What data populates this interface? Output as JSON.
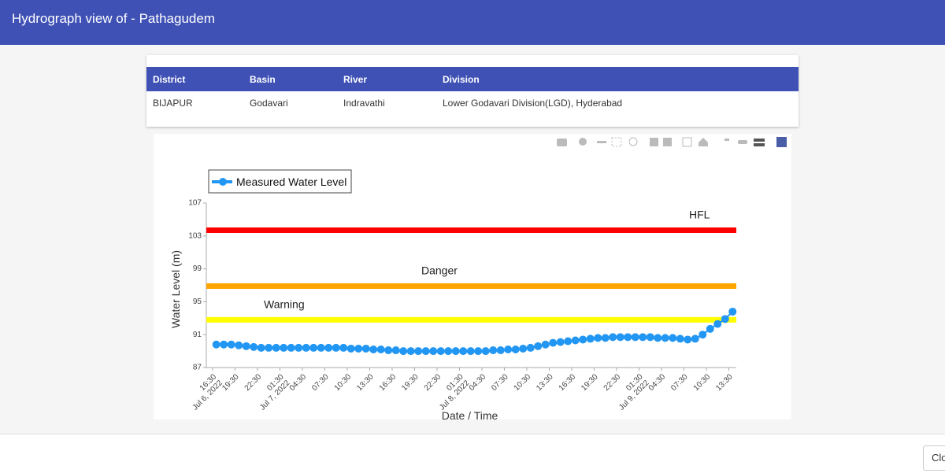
{
  "header": {
    "title": "Hydrograph view of - Pathagudem"
  },
  "table": {
    "columns": [
      "District",
      "Basin",
      "River",
      "Division"
    ],
    "rows": [
      [
        "BIJAPUR",
        "Godavari",
        "Indravathi",
        "Lower Godavari Division(LGD), Hyderabad"
      ]
    ]
  },
  "chart_data": {
    "type": "line",
    "xlabel": "Date / Time",
    "ylabel": "Water Level (m)",
    "ylim": [
      87,
      107
    ],
    "yticks": [
      87,
      91,
      95,
      99,
      103,
      107
    ],
    "xlim": [
      "2022-07-06 15:40",
      "2022-07-09 14:30"
    ],
    "xticks": [
      {
        "value": "2022-07-06 16:30",
        "label": "16:30\nJul 6, 2022"
      },
      {
        "value": "2022-07-06 19:30",
        "label": "19:30"
      },
      {
        "value": "2022-07-06 22:30",
        "label": "22:30"
      },
      {
        "value": "2022-07-07 01:30",
        "label": "01:30\nJul 7, 2022"
      },
      {
        "value": "2022-07-07 04:30",
        "label": "04:30"
      },
      {
        "value": "2022-07-07 07:30",
        "label": "07:30"
      },
      {
        "value": "2022-07-07 10:30",
        "label": "10:30"
      },
      {
        "value": "2022-07-07 13:30",
        "label": "13:30"
      },
      {
        "value": "2022-07-07 16:30",
        "label": "16:30"
      },
      {
        "value": "2022-07-07 19:30",
        "label": "19:30"
      },
      {
        "value": "2022-07-07 22:30",
        "label": "22:30"
      },
      {
        "value": "2022-07-08 01:30",
        "label": "01:30\nJul 8, 2022"
      },
      {
        "value": "2022-07-08 04:30",
        "label": "04:30"
      },
      {
        "value": "2022-07-08 07:30",
        "label": "07:30"
      },
      {
        "value": "2022-07-08 10:30",
        "label": "10:30"
      },
      {
        "value": "2022-07-08 13:30",
        "label": "13:30"
      },
      {
        "value": "2022-07-08 16:30",
        "label": "16:30"
      },
      {
        "value": "2022-07-08 19:30",
        "label": "19:30"
      },
      {
        "value": "2022-07-08 22:30",
        "label": "22:30"
      },
      {
        "value": "2022-07-09 01:30",
        "label": "01:30\nJul 9, 2022"
      },
      {
        "value": "2022-07-09 04:30",
        "label": "04:30"
      },
      {
        "value": "2022-07-09 07:30",
        "label": "07:30"
      },
      {
        "value": "2022-07-09 10:30",
        "label": "10:30"
      },
      {
        "value": "2022-07-09 13:30",
        "label": "13:30"
      }
    ],
    "x": [
      "2022-07-06 17:00",
      "2022-07-06 18:00",
      "2022-07-06 19:00",
      "2022-07-06 20:00",
      "2022-07-06 21:00",
      "2022-07-06 22:00",
      "2022-07-06 23:00",
      "2022-07-07 00:00",
      "2022-07-07 01:00",
      "2022-07-07 02:00",
      "2022-07-07 03:00",
      "2022-07-07 04:00",
      "2022-07-07 05:00",
      "2022-07-07 06:00",
      "2022-07-07 07:00",
      "2022-07-07 08:00",
      "2022-07-07 09:00",
      "2022-07-07 10:00",
      "2022-07-07 11:00",
      "2022-07-07 12:00",
      "2022-07-07 13:00",
      "2022-07-07 14:00",
      "2022-07-07 15:00",
      "2022-07-07 16:00",
      "2022-07-07 17:00",
      "2022-07-07 18:00",
      "2022-07-07 19:00",
      "2022-07-07 20:00",
      "2022-07-07 21:00",
      "2022-07-07 22:00",
      "2022-07-07 23:00",
      "2022-07-08 00:00",
      "2022-07-08 01:00",
      "2022-07-08 02:00",
      "2022-07-08 03:00",
      "2022-07-08 04:00",
      "2022-07-08 05:00",
      "2022-07-08 06:00",
      "2022-07-08 07:00",
      "2022-07-08 08:00",
      "2022-07-08 09:00",
      "2022-07-08 10:00",
      "2022-07-08 11:00",
      "2022-07-08 12:00",
      "2022-07-08 13:00",
      "2022-07-08 14:00",
      "2022-07-08 15:00",
      "2022-07-08 16:00",
      "2022-07-08 17:00",
      "2022-07-08 18:00",
      "2022-07-08 19:00",
      "2022-07-08 20:00",
      "2022-07-08 21:00",
      "2022-07-08 22:00",
      "2022-07-08 23:00",
      "2022-07-09 00:00",
      "2022-07-09 01:00",
      "2022-07-09 02:00",
      "2022-07-09 03:00",
      "2022-07-09 04:00",
      "2022-07-09 05:00",
      "2022-07-09 06:00",
      "2022-07-09 07:00",
      "2022-07-09 08:00",
      "2022-07-09 09:00",
      "2022-07-09 10:00",
      "2022-07-09 11:00",
      "2022-07-09 12:00",
      "2022-07-09 13:00",
      "2022-07-09 14:00"
    ],
    "series": [
      {
        "name": "Measured Water Level",
        "color": "#2196f3",
        "values": [
          89.8,
          89.8,
          89.8,
          89.7,
          89.6,
          89.5,
          89.4,
          89.4,
          89.4,
          89.4,
          89.4,
          89.4,
          89.4,
          89.4,
          89.4,
          89.4,
          89.4,
          89.4,
          89.3,
          89.3,
          89.3,
          89.2,
          89.2,
          89.1,
          89.1,
          89.0,
          89.0,
          89.0,
          89.0,
          89.0,
          89.0,
          89.0,
          89.0,
          89.0,
          89.0,
          89.0,
          89.0,
          89.1,
          89.1,
          89.2,
          89.2,
          89.3,
          89.4,
          89.6,
          89.8,
          90.0,
          90.1,
          90.2,
          90.3,
          90.4,
          90.5,
          90.6,
          90.6,
          90.7,
          90.7,
          90.7,
          90.7,
          90.7,
          90.7,
          90.6,
          90.6,
          90.6,
          90.5,
          90.4,
          90.5,
          91.0,
          91.7,
          92.3,
          92.9,
          93.8
        ]
      }
    ],
    "reference_lines": [
      {
        "name": "HFL",
        "value": 103.7,
        "color": "#ff0000"
      },
      {
        "name": "Danger",
        "value": 96.9,
        "color": "#ffa500"
      },
      {
        "name": "Warning",
        "value": 92.8,
        "color": "#ffff00"
      }
    ],
    "legend": "top-left"
  },
  "footer": {
    "button": "Close"
  }
}
